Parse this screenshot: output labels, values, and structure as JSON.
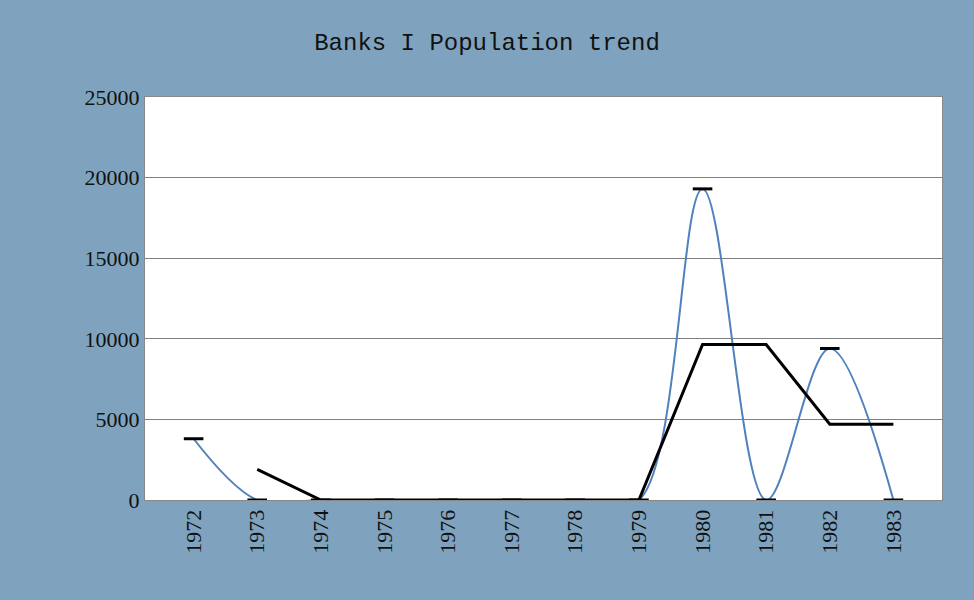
{
  "chart_data": {
    "type": "line",
    "title": "Banks I Population trend",
    "categories": [
      "1972",
      "1973",
      "1974",
      "1975",
      "1976",
      "1977",
      "1978",
      "1979",
      "1980",
      "1981",
      "1982",
      "1983"
    ],
    "series": [
      {
        "color": "#4f81bd",
        "line_style": "smooth",
        "marker": "dash",
        "values": [
          3800,
          0,
          0,
          0,
          0,
          0,
          0,
          0,
          19300,
          0,
          9400,
          0
        ]
      },
      {
        "color": "#000000",
        "line_style": "solid",
        "values": [
          null,
          1900,
          0,
          0,
          0,
          0,
          0,
          0,
          9650,
          9650,
          4700,
          4700
        ]
      }
    ],
    "ylim": [
      0,
      25000
    ],
    "yticks": [
      0,
      5000,
      10000,
      15000,
      20000,
      25000
    ],
    "grid": true
  }
}
